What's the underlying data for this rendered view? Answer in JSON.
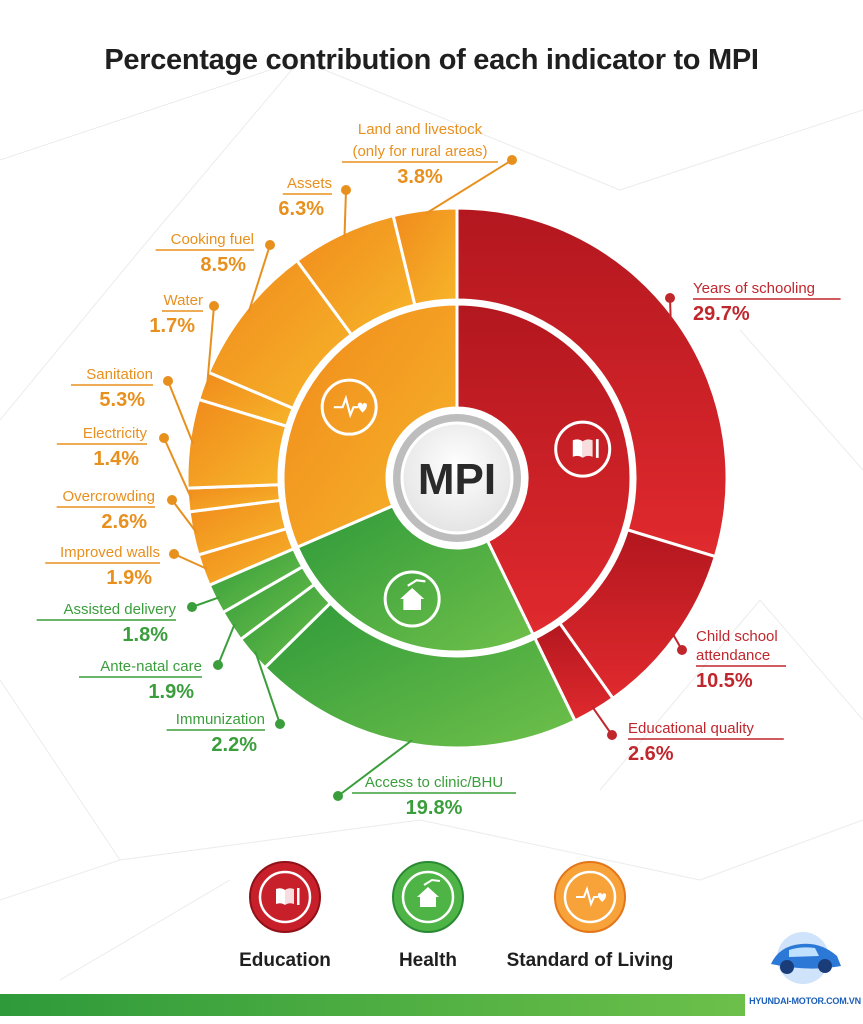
{
  "title": "Percentage contribution of each indicator to MPI",
  "center_label": "MPI",
  "colors": {
    "education": "#c8202a",
    "health": "#3aa83f",
    "standard_of_living": "#f39a1f",
    "education_text": "#c0272d",
    "health_text": "#3b9e3c",
    "living_text": "#e8901e"
  },
  "chart_data": {
    "type": "pie",
    "title": "Percentage contribution of each indicator to MPI",
    "inner_ring": [
      {
        "name": "Education",
        "value": 42.8,
        "icon": "book-icon"
      },
      {
        "name": "Health",
        "value": 25.7,
        "icon": "house-icon"
      },
      {
        "name": "Standard of Living",
        "value": 31.5,
        "icon": "heartbeat-icon"
      }
    ],
    "outer_ring": [
      {
        "label": "Years of schooling",
        "value_text": "29.7%",
        "value": 29.7,
        "group": "education"
      },
      {
        "label": "Child school attendance",
        "value_text": "10.5%",
        "value": 10.5,
        "group": "education"
      },
      {
        "label": "Educational quality",
        "value_text": "2.6%",
        "value": 2.6,
        "group": "education"
      },
      {
        "label": "Access to clinic/BHU",
        "value_text": "19.8%",
        "value": 19.8,
        "group": "health"
      },
      {
        "label": "Immunization",
        "value_text": "2.2%",
        "value": 2.2,
        "group": "health"
      },
      {
        "label": "Ante-natal care",
        "value_text": "1.9%",
        "value": 1.9,
        "group": "health"
      },
      {
        "label": "Assisted delivery",
        "value_text": "1.8%",
        "value": 1.8,
        "group": "health"
      },
      {
        "label": "Improved walls",
        "value_text": "1.9%",
        "value": 1.9,
        "group": "living"
      },
      {
        "label": "Overcrowding",
        "value_text": "2.6%",
        "value": 2.6,
        "group": "living"
      },
      {
        "label": "Electricity",
        "value_text": "1.4%",
        "value": 1.4,
        "group": "living"
      },
      {
        "label": "Sanitation",
        "value_text": "5.3%",
        "value": 5.3,
        "group": "living"
      },
      {
        "label": "Water",
        "value_text": "1.7%",
        "value": 1.7,
        "group": "living"
      },
      {
        "label": "Cooking fuel",
        "value_text": "8.5%",
        "value": 8.5,
        "group": "living"
      },
      {
        "label": "Assets",
        "value_text": "6.3%",
        "value": 6.3,
        "group": "living"
      },
      {
        "label": "Land and livestock (only for rural areas)",
        "value_text": "3.8%",
        "value": 3.8,
        "group": "living"
      }
    ]
  },
  "legend": [
    {
      "label": "Education",
      "icon": "book-icon"
    },
    {
      "label": "Health",
      "icon": "house-icon"
    },
    {
      "label": "Standard of Living",
      "icon": "heartbeat-icon"
    }
  ],
  "watermark": "HYUNDAI-MOTOR.COM.VN"
}
